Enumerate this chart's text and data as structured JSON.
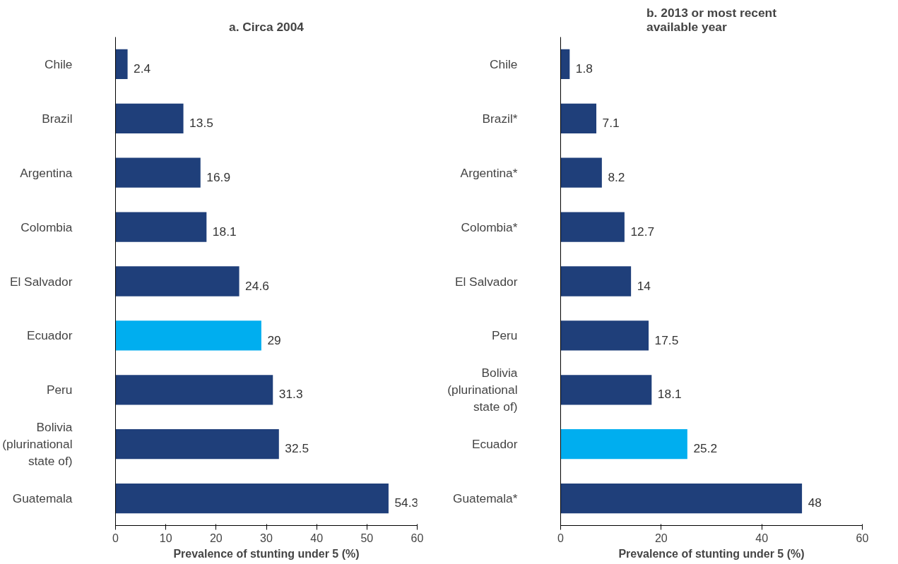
{
  "chart_data": [
    {
      "type": "bar",
      "orientation": "horizontal",
      "title": "a. Circa 2004",
      "xlabel": "Prevalence of stunting under 5 (%)",
      "categories": [
        "Chile",
        "Brazil",
        "Argentina",
        "Colombia",
        "El Salvador",
        "Ecuador",
        "Peru",
        "Bolivia (plurinational state of)",
        "Guatemala"
      ],
      "values": [
        2.4,
        13.5,
        16.9,
        18.1,
        24.6,
        29,
        31.3,
        32.5,
        54.3
      ],
      "colors": [
        "#1f3f7a",
        "#1f3f7a",
        "#1f3f7a",
        "#1f3f7a",
        "#1f3f7a",
        "#00aeef",
        "#1f3f7a",
        "#1f3f7a",
        "#1f3f7a"
      ],
      "xlim": [
        0,
        60
      ],
      "xticks": [
        0,
        10,
        20,
        30,
        40,
        50,
        60
      ],
      "data_labels": true,
      "grid": false
    },
    {
      "type": "bar",
      "orientation": "horizontal",
      "title": "b. 2013 or most recent available year",
      "xlabel": "Prevalence of stunting under 5 (%)",
      "categories": [
        "Chile",
        "Brazil*",
        "Argentina*",
        "Colombia*",
        "El Salvador",
        "Peru",
        "Bolivia (plurinational state of)",
        "Ecuador",
        "Guatemala*"
      ],
      "values": [
        1.8,
        7.1,
        8.2,
        12.7,
        14,
        17.5,
        18.1,
        25.2,
        48
      ],
      "colors": [
        "#1f3f7a",
        "#1f3f7a",
        "#1f3f7a",
        "#1f3f7a",
        "#1f3f7a",
        "#1f3f7a",
        "#1f3f7a",
        "#00aeef",
        "#1f3f7a"
      ],
      "xlim": [
        0,
        60
      ],
      "xticks": [
        0,
        20,
        40,
        60
      ],
      "data_labels": true,
      "grid": false
    }
  ]
}
